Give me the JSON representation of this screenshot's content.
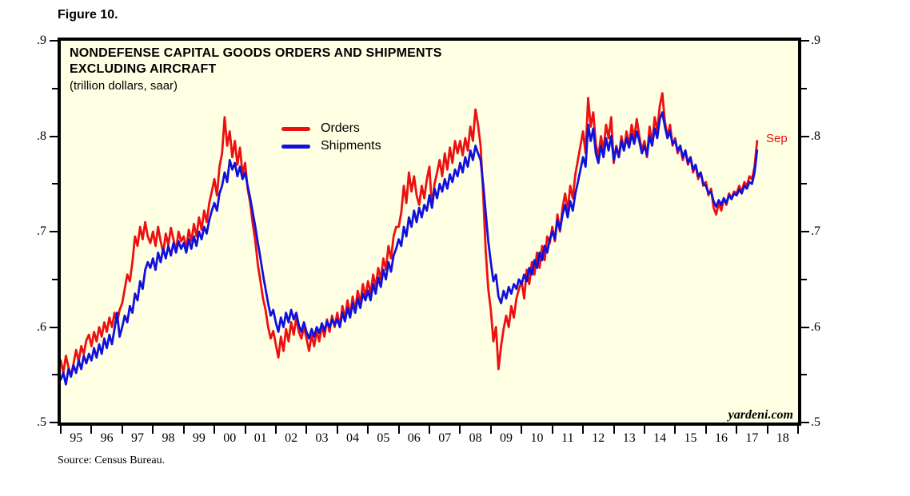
{
  "figure_label": "Figure 10.",
  "source_note": "Source: Census Bureau.",
  "watermark": "yardeni.com",
  "chart": {
    "title_line1": "NONDEFENSE CAPITAL GOODS ORDERS AND SHIPMENTS",
    "title_line2": "EXCLUDING AIRCRAFT",
    "subtitle": "(trillion dollars, saar)",
    "colors": {
      "orders": "#ED1010",
      "shipments": "#1111DD",
      "plot_background": "#FFFFE3",
      "axis": "#000000",
      "last_point_label": "#ED1010"
    }
  },
  "chart_data": {
    "type": "line",
    "title": "NONDEFENSE CAPITAL GOODS ORDERS AND SHIPMENTS EXCLUDING AIRCRAFT",
    "subtitle": "(trillion dollars, saar)",
    "ylabel": "trillion dollars, saar",
    "ylim": [
      0.5,
      0.9
    ],
    "y_tick_labels": [
      ".9",
      ".8",
      ".7",
      ".6",
      ".5"
    ],
    "y_major_ticks": [
      0.9,
      0.8,
      0.7,
      0.6,
      0.5
    ],
    "y_minor_ticks": [
      0.85,
      0.75,
      0.65,
      0.55
    ],
    "x_range": [
      1995,
      2019
    ],
    "x_tick_labels": [
      "95",
      "96",
      "97",
      "98",
      "99",
      "00",
      "01",
      "02",
      "03",
      "04",
      "05",
      "06",
      "07",
      "08",
      "09",
      "10",
      "11",
      "12",
      "13",
      "14",
      "15",
      "16",
      "17",
      "18"
    ],
    "grid": false,
    "legend_position": "upper-left-inside",
    "frequency": "monthly",
    "last_point_label": "Sep",
    "series": [
      {
        "name": "Orders",
        "color": "#ED1010",
        "start_year": 1995,
        "start_month": 1,
        "end_label": "Sep 2017",
        "values": [
          0.565,
          0.552,
          0.57,
          0.558,
          0.549,
          0.562,
          0.576,
          0.564,
          0.58,
          0.572,
          0.586,
          0.592,
          0.58,
          0.595,
          0.585,
          0.6,
          0.59,
          0.605,
          0.595,
          0.61,
          0.6,
          0.615,
          0.605,
          0.618,
          0.625,
          0.64,
          0.655,
          0.648,
          0.668,
          0.695,
          0.685,
          0.705,
          0.692,
          0.71,
          0.695,
          0.688,
          0.7,
          0.685,
          0.705,
          0.69,
          0.678,
          0.698,
          0.686,
          0.704,
          0.692,
          0.68,
          0.7,
          0.69,
          0.695,
          0.682,
          0.702,
          0.69,
          0.708,
          0.695,
          0.715,
          0.702,
          0.722,
          0.71,
          0.73,
          0.742,
          0.755,
          0.738,
          0.768,
          0.782,
          0.82,
          0.79,
          0.805,
          0.778,
          0.795,
          0.77,
          0.788,
          0.76,
          0.772,
          0.745,
          0.73,
          0.708,
          0.69,
          0.665,
          0.648,
          0.63,
          0.618,
          0.6,
          0.588,
          0.596,
          0.582,
          0.568,
          0.59,
          0.575,
          0.598,
          0.585,
          0.605,
          0.592,
          0.61,
          0.595,
          0.588,
          0.6,
          0.588,
          0.575,
          0.592,
          0.58,
          0.596,
          0.585,
          0.602,
          0.59,
          0.608,
          0.595,
          0.612,
          0.6,
          0.615,
          0.6,
          0.622,
          0.608,
          0.628,
          0.612,
          0.632,
          0.618,
          0.638,
          0.625,
          0.645,
          0.632,
          0.648,
          0.635,
          0.655,
          0.642,
          0.662,
          0.65,
          0.672,
          0.66,
          0.685,
          0.672,
          0.695,
          0.705,
          0.705,
          0.72,
          0.748,
          0.73,
          0.762,
          0.742,
          0.758,
          0.738,
          0.728,
          0.748,
          0.735,
          0.755,
          0.768,
          0.725,
          0.75,
          0.762,
          0.775,
          0.758,
          0.782,
          0.765,
          0.788,
          0.772,
          0.795,
          0.782,
          0.795,
          0.78,
          0.798,
          0.785,
          0.81,
          0.795,
          0.828,
          0.812,
          0.79,
          0.74,
          0.68,
          0.64,
          0.618,
          0.585,
          0.6,
          0.556,
          0.58,
          0.598,
          0.612,
          0.6,
          0.622,
          0.61,
          0.63,
          0.64,
          0.648,
          0.63,
          0.66,
          0.645,
          0.668,
          0.655,
          0.678,
          0.662,
          0.685,
          0.67,
          0.695,
          0.688,
          0.705,
          0.69,
          0.718,
          0.7,
          0.725,
          0.74,
          0.722,
          0.748,
          0.735,
          0.76,
          0.775,
          0.79,
          0.805,
          0.782,
          0.84,
          0.81,
          0.825,
          0.792,
          0.778,
          0.8,
          0.785,
          0.812,
          0.798,
          0.82,
          0.772,
          0.79,
          0.778,
          0.8,
          0.785,
          0.805,
          0.79,
          0.812,
          0.798,
          0.818,
          0.8,
          0.785,
          0.795,
          0.778,
          0.81,
          0.792,
          0.82,
          0.805,
          0.832,
          0.845,
          0.815,
          0.8,
          0.812,
          0.79,
          0.798,
          0.782,
          0.79,
          0.775,
          0.785,
          0.77,
          0.778,
          0.762,
          0.77,
          0.755,
          0.762,
          0.748,
          0.752,
          0.738,
          0.745,
          0.725,
          0.718,
          0.73,
          0.722,
          0.735,
          0.728,
          0.74,
          0.735,
          0.742,
          0.74,
          0.748,
          0.742,
          0.752,
          0.748,
          0.758,
          0.755,
          0.768,
          0.795
        ]
      },
      {
        "name": "Shipments",
        "color": "#1111DD",
        "start_year": 1995,
        "start_month": 1,
        "end_label": "Sep 2017",
        "values": [
          0.545,
          0.552,
          0.54,
          0.556,
          0.548,
          0.56,
          0.552,
          0.565,
          0.556,
          0.57,
          0.562,
          0.572,
          0.565,
          0.578,
          0.568,
          0.582,
          0.572,
          0.588,
          0.578,
          0.592,
          0.582,
          0.598,
          0.615,
          0.59,
          0.6,
          0.612,
          0.605,
          0.622,
          0.615,
          0.635,
          0.628,
          0.648,
          0.64,
          0.66,
          0.668,
          0.662,
          0.672,
          0.66,
          0.678,
          0.668,
          0.682,
          0.672,
          0.685,
          0.675,
          0.688,
          0.678,
          0.69,
          0.682,
          0.688,
          0.678,
          0.692,
          0.682,
          0.695,
          0.685,
          0.7,
          0.692,
          0.705,
          0.698,
          0.712,
          0.722,
          0.73,
          0.722,
          0.74,
          0.748,
          0.762,
          0.752,
          0.775,
          0.765,
          0.772,
          0.758,
          0.768,
          0.755,
          0.762,
          0.748,
          0.735,
          0.72,
          0.705,
          0.688,
          0.672,
          0.655,
          0.64,
          0.625,
          0.612,
          0.618,
          0.605,
          0.595,
          0.61,
          0.6,
          0.615,
          0.605,
          0.618,
          0.608,
          0.615,
          0.602,
          0.595,
          0.605,
          0.595,
          0.588,
          0.598,
          0.59,
          0.6,
          0.594,
          0.604,
          0.596,
          0.606,
          0.6,
          0.608,
          0.602,
          0.608,
          0.6,
          0.615,
          0.606,
          0.62,
          0.61,
          0.625,
          0.615,
          0.63,
          0.62,
          0.635,
          0.628,
          0.638,
          0.628,
          0.645,
          0.635,
          0.652,
          0.642,
          0.66,
          0.65,
          0.668,
          0.658,
          0.675,
          0.682,
          0.692,
          0.685,
          0.705,
          0.695,
          0.715,
          0.705,
          0.722,
          0.71,
          0.725,
          0.715,
          0.728,
          0.722,
          0.738,
          0.725,
          0.745,
          0.735,
          0.75,
          0.742,
          0.755,
          0.745,
          0.76,
          0.752,
          0.765,
          0.758,
          0.772,
          0.762,
          0.778,
          0.768,
          0.785,
          0.775,
          0.79,
          0.782,
          0.775,
          0.75,
          0.72,
          0.69,
          0.668,
          0.648,
          0.655,
          0.632,
          0.625,
          0.638,
          0.63,
          0.642,
          0.635,
          0.645,
          0.64,
          0.65,
          0.645,
          0.655,
          0.648,
          0.662,
          0.655,
          0.67,
          0.662,
          0.678,
          0.67,
          0.685,
          0.678,
          0.692,
          0.7,
          0.692,
          0.712,
          0.702,
          0.718,
          0.728,
          0.715,
          0.732,
          0.722,
          0.74,
          0.752,
          0.765,
          0.778,
          0.768,
          0.812,
          0.795,
          0.808,
          0.782,
          0.772,
          0.79,
          0.778,
          0.798,
          0.785,
          0.8,
          0.775,
          0.788,
          0.778,
          0.795,
          0.785,
          0.798,
          0.788,
          0.802,
          0.792,
          0.805,
          0.795,
          0.782,
          0.79,
          0.78,
          0.8,
          0.79,
          0.808,
          0.798,
          0.818,
          0.825,
          0.81,
          0.798,
          0.805,
          0.792,
          0.795,
          0.785,
          0.79,
          0.778,
          0.785,
          0.772,
          0.778,
          0.765,
          0.77,
          0.758,
          0.762,
          0.75,
          0.748,
          0.74,
          0.742,
          0.732,
          0.726,
          0.733,
          0.728,
          0.735,
          0.73,
          0.738,
          0.734,
          0.74,
          0.738,
          0.744,
          0.74,
          0.748,
          0.745,
          0.752,
          0.75,
          0.762,
          0.785
        ]
      }
    ]
  }
}
